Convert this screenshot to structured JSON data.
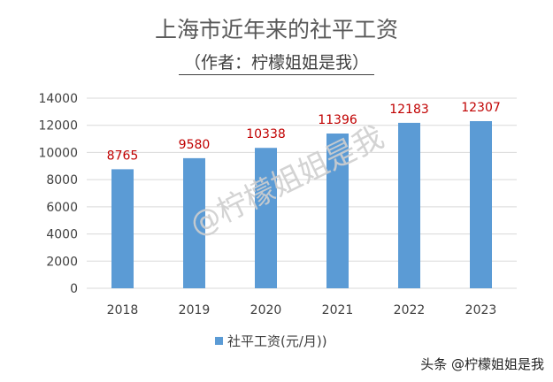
{
  "header": {
    "title": "上海市近年来的社平工资",
    "subtitle": "（作者：柠檬姐姐是我）"
  },
  "watermark": "@柠檬姐姐是我",
  "brand": "头条 @柠檬姐姐是我",
  "colors": {
    "bar": "#5b9bd5",
    "value_label": "#c00000",
    "grid": "#d9d9d9",
    "axis_text": "#404040"
  },
  "chart_data": {
    "type": "bar",
    "categories": [
      "2018",
      "2019",
      "2020",
      "2021",
      "2022",
      "2023"
    ],
    "series": [
      {
        "name": "社平工资(元/月))",
        "values": [
          8765,
          9580,
          10338,
          11396,
          12183,
          12307
        ]
      }
    ],
    "ylim": [
      0,
      14000
    ],
    "yticks": [
      0,
      2000,
      4000,
      6000,
      8000,
      10000,
      12000,
      14000
    ],
    "grid": true,
    "legend": "bottom",
    "data_labels": true
  }
}
